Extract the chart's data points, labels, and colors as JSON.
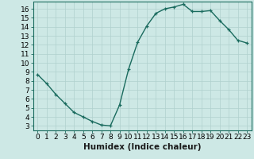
{
  "x": [
    0,
    1,
    2,
    3,
    4,
    5,
    6,
    7,
    8,
    9,
    10,
    11,
    12,
    13,
    14,
    15,
    16,
    17,
    18,
    19,
    20,
    21,
    22,
    23
  ],
  "y": [
    8.7,
    7.7,
    6.5,
    5.5,
    4.5,
    4.0,
    3.5,
    3.1,
    3.0,
    5.3,
    9.3,
    12.3,
    14.1,
    15.5,
    16.0,
    16.2,
    16.5,
    15.7,
    15.7,
    15.8,
    14.7,
    13.7,
    12.5,
    12.2
  ],
  "line_color": "#1a6b5e",
  "marker": "+",
  "markersize": 3,
  "linewidth": 1.0,
  "bg_color": "#cde8e5",
  "grid_color": "#b0d0ce",
  "xlabel": "Humidex (Indice chaleur)",
  "xlabel_fontsize": 7.5,
  "ylabel_ticks": [
    3,
    4,
    5,
    6,
    7,
    8,
    9,
    10,
    11,
    12,
    13,
    14,
    15,
    16
  ],
  "xlim": [
    -0.5,
    23.5
  ],
  "ylim": [
    2.5,
    16.8
  ],
  "xticks": [
    0,
    1,
    2,
    3,
    4,
    5,
    6,
    7,
    8,
    9,
    10,
    11,
    12,
    13,
    14,
    15,
    16,
    17,
    18,
    19,
    20,
    21,
    22,
    23
  ],
  "tick_fontsize": 6.5,
  "spine_color": "#1a6b5e",
  "title": ""
}
